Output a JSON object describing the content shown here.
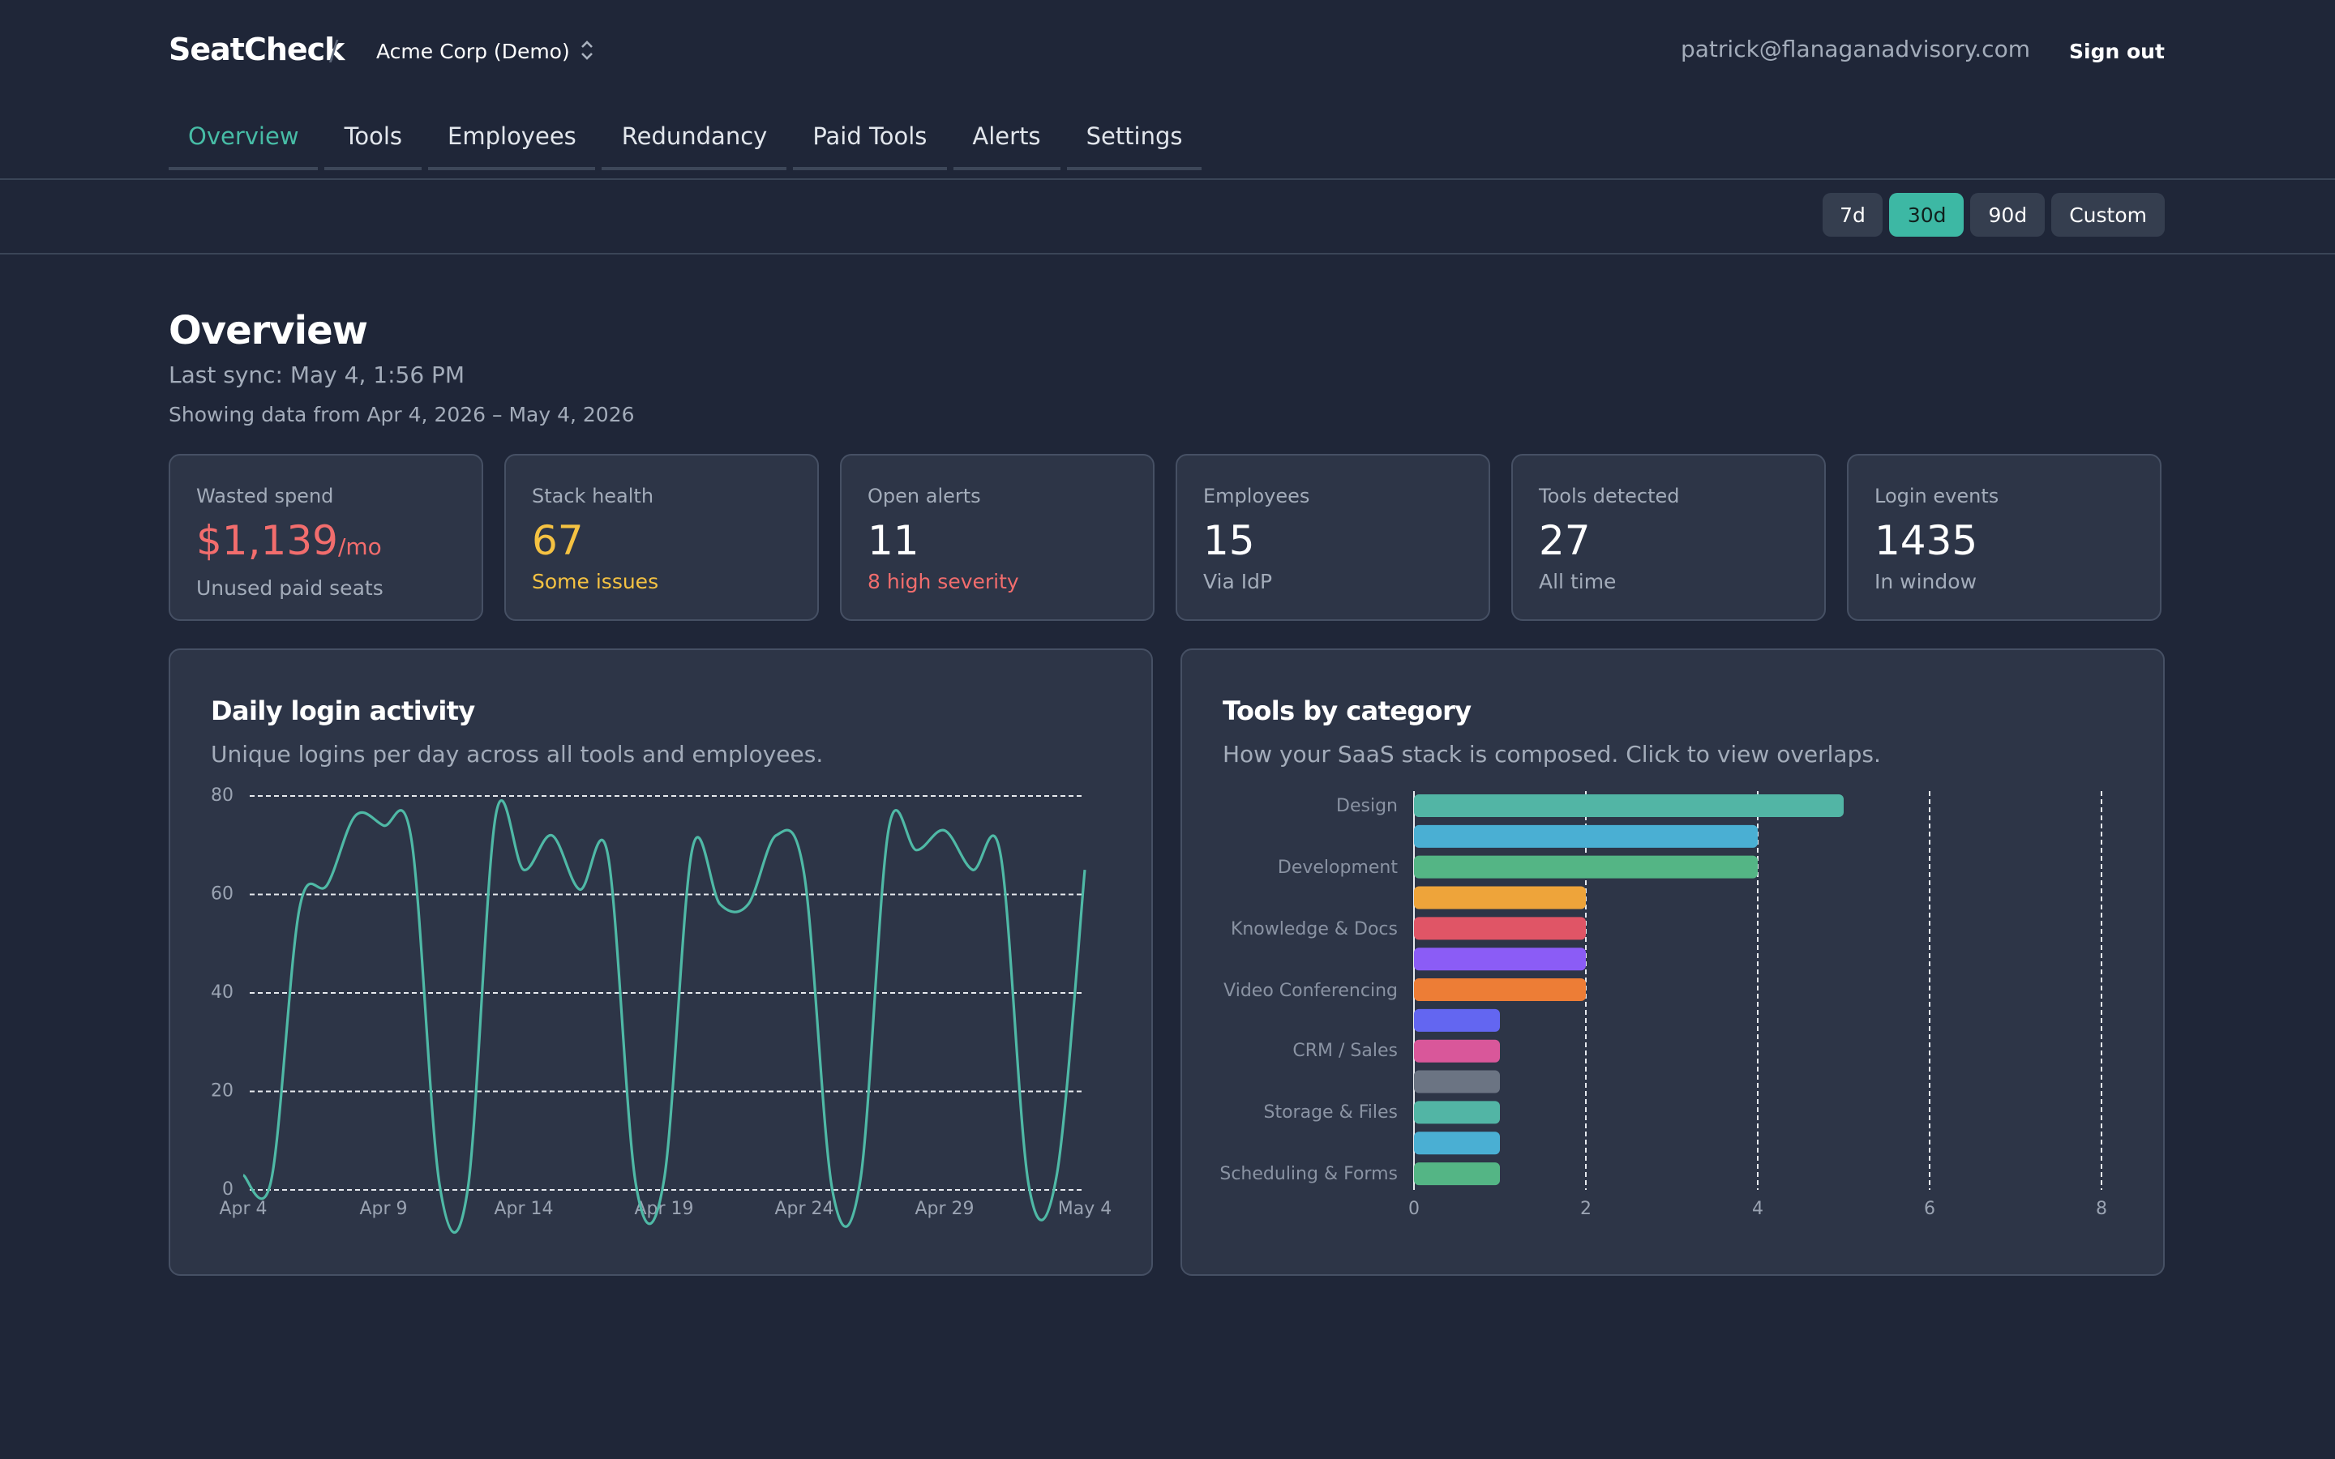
{
  "header": {
    "brand": "SeatCheck",
    "separator": "/",
    "org": "Acme Corp (Demo)",
    "email": "patrick@flanaganadvisory.com",
    "sign_out": "Sign out"
  },
  "tabs": [
    {
      "label": "Overview",
      "active": true
    },
    {
      "label": "Tools"
    },
    {
      "label": "Employees"
    },
    {
      "label": "Redundancy"
    },
    {
      "label": "Paid Tools"
    },
    {
      "label": "Alerts"
    },
    {
      "label": "Settings"
    }
  ],
  "ranges": [
    {
      "label": "7d"
    },
    {
      "label": "30d",
      "active": true
    },
    {
      "label": "90d"
    },
    {
      "label": "Custom"
    }
  ],
  "page": {
    "title": "Overview",
    "last_sync": "Last sync: May 4, 1:56 PM",
    "range_text": "Showing data from Apr 4, 2026 – May 4, 2026"
  },
  "stats": [
    {
      "label": "Wasted spend",
      "value": "$1,139",
      "unit": "/mo",
      "note": "Unused paid seats",
      "value_color": "#f26d6d"
    },
    {
      "label": "Stack health",
      "value": 67,
      "note": "Some issues",
      "value_color": "#f5c242",
      "note_color": "#f5c242"
    },
    {
      "label": "Open alerts",
      "value": 11,
      "note": "8 high severity",
      "note_color": "#f26d6d"
    },
    {
      "label": "Employees",
      "value": 15,
      "note": "Via IdP"
    },
    {
      "label": "Tools detected",
      "value": 27,
      "note": "All time"
    },
    {
      "label": "Login events",
      "value": 1435,
      "note": "In window"
    }
  ],
  "chart_data": [
    {
      "type": "line",
      "title": "Daily login activity",
      "subtitle": "Unique logins per day across all tools and employees.",
      "x": [
        "Apr 4",
        null,
        null,
        null,
        null,
        "Apr 9",
        null,
        null,
        null,
        null,
        "Apr 14",
        null,
        null,
        null,
        null,
        "Apr 19",
        null,
        null,
        null,
        null,
        "Apr 24",
        null,
        null,
        null,
        null,
        "Apr 29",
        null,
        null,
        null,
        null,
        "May 4"
      ],
      "values": [
        3,
        2,
        57,
        62,
        76,
        74,
        71,
        1,
        0,
        76,
        65,
        72,
        61,
        68,
        1,
        2,
        69,
        58,
        58,
        72,
        64,
        0,
        2,
        73,
        69,
        73,
        65,
        68,
        1,
        3,
        65
      ],
      "color": "#4fb9a6",
      "ylim": [
        0,
        80
      ],
      "yticks": [
        0,
        20,
        40,
        60,
        80
      ],
      "grid": true
    },
    {
      "type": "hbar",
      "title": "Tools by category",
      "subtitle": "How your SaaS stack is composed. Click to view overlaps.",
      "categories": [
        "Design",
        null,
        "Development",
        null,
        "Knowledge & Docs",
        null,
        "Video Conferencing",
        null,
        "CRM / Sales",
        null,
        "Storage & Files",
        null,
        "Scheduling & Forms"
      ],
      "values": [
        5,
        4,
        4,
        2,
        2,
        2,
        2,
        1,
        1,
        1,
        1,
        1,
        1
      ],
      "colors": [
        "#52b5a5",
        "#4aafd3",
        "#54b585",
        "#eea43a",
        "#e05566",
        "#8b5cf6",
        "#ed7d36",
        "#6366f1",
        "#d9579a",
        "#6b7483",
        "#52b5a5",
        "#4aafd3",
        "#54b585"
      ],
      "xlim": [
        0,
        8
      ],
      "xticks": [
        0,
        2,
        4,
        6,
        8
      ],
      "grid": true
    }
  ]
}
